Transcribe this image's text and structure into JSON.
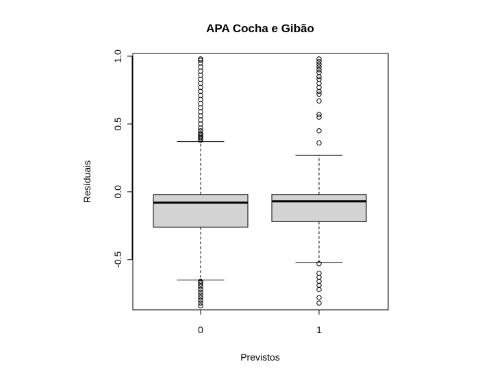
{
  "chart_data": {
    "type": "boxplot",
    "title": "APA Cocha e Gibão",
    "xlabel": "Previstos",
    "ylabel": "Resíduais",
    "categories": [
      "0",
      "1"
    ],
    "ylim": [
      -0.87,
      1.02
    ],
    "yticks": [
      -0.5,
      0.0,
      0.5,
      1.0
    ],
    "ytick_labels": [
      "-0.5",
      "0.0",
      "0.5",
      "1.0"
    ],
    "box_fill": "#d3d3d3",
    "boxes": [
      {
        "category": "0",
        "whisker_low": -0.65,
        "q1": -0.26,
        "median": -0.08,
        "q3": -0.02,
        "whisker_high": 0.37,
        "outliers": [
          0.38,
          0.39,
          0.4,
          0.41,
          0.42,
          0.43,
          0.45,
          0.47,
          0.5,
          0.53,
          0.56,
          0.59,
          0.62,
          0.65,
          0.68,
          0.71,
          0.74,
          0.77,
          0.8,
          0.83,
          0.86,
          0.89,
          0.92,
          0.95,
          0.97,
          0.98,
          -0.66,
          -0.67,
          -0.68,
          -0.7,
          -0.72,
          -0.74,
          -0.76,
          -0.78,
          -0.8,
          -0.82,
          -0.84
        ]
      },
      {
        "category": "1",
        "whisker_low": -0.52,
        "q1": -0.22,
        "median": -0.07,
        "q3": -0.02,
        "whisker_high": 0.27,
        "outliers": [
          0.36,
          0.45,
          0.55,
          0.57,
          0.67,
          0.72,
          0.74,
          0.77,
          0.8,
          0.83,
          0.85,
          0.88,
          0.9,
          0.92,
          0.94,
          0.96,
          0.98,
          -0.53,
          -0.6,
          -0.63,
          -0.66,
          -0.69,
          -0.72,
          -0.78,
          -0.82
        ]
      }
    ]
  }
}
